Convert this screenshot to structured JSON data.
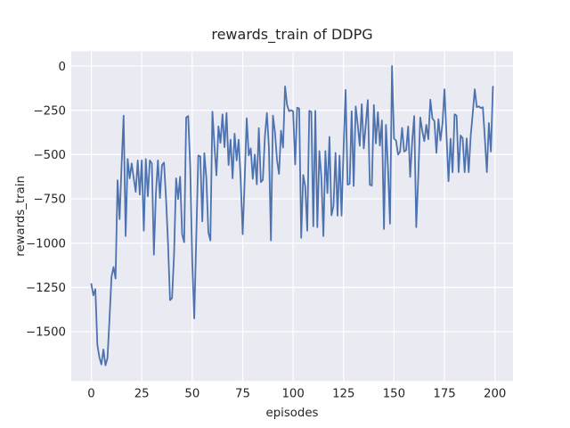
{
  "figure": {
    "background_color": "#ffffff",
    "axes_background_color": "#eaeaf2",
    "grid_color": "#ffffff",
    "line_color": "#4c72b0",
    "text_color": "#262626"
  },
  "chart_data": {
    "type": "line",
    "title": "rewards_train of DDPG",
    "xlabel": "episodes",
    "ylabel": "rewards_train",
    "legend": "none",
    "grid": true,
    "style": "seaborn-darkgrid",
    "xlim": [
      -9.95,
      208.95
    ],
    "ylim": [
      -1778,
      83
    ],
    "x_ticks": [
      0,
      25,
      50,
      75,
      100,
      125,
      150,
      175,
      200
    ],
    "x_tick_labels": [
      "0",
      "25",
      "50",
      "75",
      "100",
      "125",
      "150",
      "175",
      "200"
    ],
    "y_ticks": [
      0,
      -250,
      -500,
      -750,
      -1000,
      -1250,
      -1500
    ],
    "y_tick_labels": [
      "0",
      "−250",
      "−500",
      "−750",
      "−1000",
      "−1250",
      "−1500"
    ],
    "series": [
      {
        "name": "rewards_train",
        "x_start": 0,
        "x_step": 1,
        "values": [
          -1230,
          -1295,
          -1260,
          -1575,
          -1645,
          -1685,
          -1600,
          -1690,
          -1650,
          -1430,
          -1190,
          -1135,
          -1200,
          -645,
          -865,
          -560,
          -280,
          -960,
          -525,
          -634,
          -550,
          -634,
          -710,
          -533,
          -726,
          -533,
          -930,
          -525,
          -735,
          -533,
          -550,
          -1065,
          -720,
          -533,
          -745,
          -560,
          -545,
          -743,
          -1000,
          -1322,
          -1310,
          -1062,
          -634,
          -751,
          -625,
          -950,
          -995,
          -290,
          -282,
          -567,
          -1100,
          -1425,
          -970,
          -505,
          -510,
          -877,
          -492,
          -634,
          -940,
          -985,
          -257,
          -449,
          -617,
          -341,
          -433,
          -273,
          -458,
          -265,
          -559,
          -416,
          -634,
          -382,
          -533,
          -416,
          -640,
          -950,
          -640,
          -295,
          -505,
          -465,
          -637,
          -500,
          -668,
          -350,
          -655,
          -643,
          -400,
          -265,
          -460,
          -985,
          -280,
          -374,
          -530,
          -609,
          -365,
          -460,
          -115,
          -220,
          -255,
          -250,
          -255,
          -555,
          -235,
          -240,
          -970,
          -615,
          -680,
          -930,
          -253,
          -258,
          -905,
          -253,
          -910,
          -480,
          -630,
          -960,
          -480,
          -717,
          -400,
          -843,
          -790,
          -490,
          -845,
          -505,
          -845,
          -465,
          -135,
          -670,
          -665,
          -255,
          -677,
          -228,
          -330,
          -450,
          -215,
          -465,
          -330,
          -192,
          -670,
          -675,
          -220,
          -437,
          -260,
          -449,
          -307,
          -920,
          -332,
          -575,
          -890,
          0,
          -410,
          -420,
          -500,
          -483,
          -349,
          -483,
          -475,
          -341,
          -626,
          -424,
          -282,
          -910,
          -626,
          -290,
          -366,
          -424,
          -332,
          -413,
          -190,
          -295,
          -310,
          -490,
          -300,
          -420,
          -325,
          -131,
          -392,
          -650,
          -410,
          -600,
          -272,
          -280,
          -599,
          -392,
          -408,
          -599,
          -408,
          -599,
          -392,
          -267,
          -131,
          -232,
          -227,
          -237,
          -232,
          -408,
          -599,
          -322,
          -483,
          -116
        ]
      }
    ]
  }
}
